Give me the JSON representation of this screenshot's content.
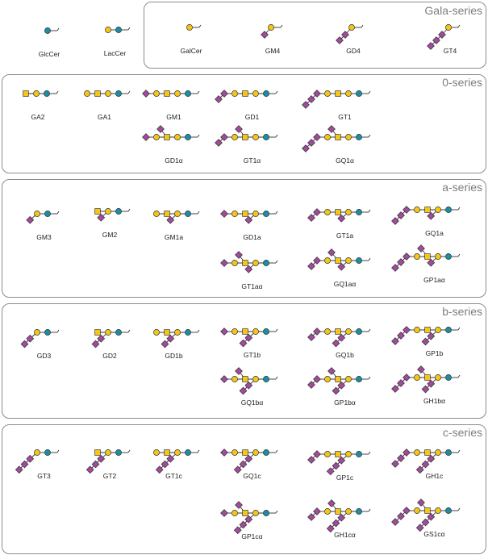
{
  "colors": {
    "glucose": "#1b8ea3",
    "galactose": "#f5c518",
    "galnac": "#f5c518",
    "sialic_acid": "#a24a9c",
    "frame": "#8c8c8c",
    "series_title": "#7d7d7d"
  },
  "legend_shapes": {
    "glucose": "blue-circle",
    "galactose": "yellow-circle",
    "galnac": "yellow-square",
    "sialic_acid": "purple-diamond"
  },
  "series": [
    {
      "id": "gala",
      "title": "Gala-series",
      "items": [
        {
          "name": "GalCer",
          "core": "C",
          "left": 0,
          "lower": []
        },
        {
          "name": "GM4",
          "core": "C",
          "left": 1,
          "lower": []
        },
        {
          "name": "GD4",
          "core": "C",
          "left": 2,
          "lower": []
        },
        {
          "name": "GT4",
          "core": "C",
          "left": 3,
          "lower": []
        }
      ]
    },
    {
      "id": "zero",
      "title": "0-series",
      "items": [
        {
          "name": "GA2",
          "core": "SCB",
          "left": 0,
          "lower": []
        },
        {
          "name": "GA1",
          "core": "CSCB",
          "left": 0,
          "lower": []
        },
        {
          "name": "GM1",
          "core": "CSCB",
          "left": 1,
          "lower": []
        },
        {
          "name": "GD1",
          "core": "CSCB",
          "left": 2,
          "lower": []
        },
        {
          "name": "GT1",
          "core": "CSCB",
          "left": 3,
          "lower": []
        },
        {
          "name": "GD1α",
          "core": "CSCB",
          "left": 1,
          "up": 1,
          "lower": []
        },
        {
          "name": "GT1α",
          "core": "CSCB",
          "left": 2,
          "up": 1,
          "lower": []
        },
        {
          "name": "GQ1α",
          "core": "CSCB",
          "left": 3,
          "up": 1,
          "lower": []
        }
      ]
    },
    {
      "id": "a",
      "title": "a-series",
      "items": [
        {
          "name": "GM3",
          "core": "CB",
          "left": 0,
          "lower": [
            1
          ]
        },
        {
          "name": "GM2",
          "core": "SCB",
          "left": 0,
          "lower": [
            1
          ]
        },
        {
          "name": "GM1a",
          "core": "CSCB",
          "left": 0,
          "lower": [
            1
          ]
        },
        {
          "name": "GD1a",
          "core": "CSCB",
          "left": 1,
          "lower": [
            1
          ]
        },
        {
          "name": "GT1a",
          "core": "CSCB",
          "left": 2,
          "lower": [
            1
          ]
        },
        {
          "name": "GQ1a",
          "core": "CSCB",
          "left": 3,
          "lower": [
            1
          ]
        },
        {
          "name": "GT1aα",
          "core": "CSCB",
          "left": 1,
          "up": 1,
          "lower": [
            1
          ]
        },
        {
          "name": "GQ1aα",
          "core": "CSCB",
          "left": 2,
          "up": 1,
          "lower": [
            1
          ]
        },
        {
          "name": "GP1aα",
          "core": "CSCB",
          "left": 3,
          "up": 1,
          "lower": [
            1
          ]
        }
      ]
    },
    {
      "id": "b",
      "title": "b-series",
      "items": [
        {
          "name": "GD3",
          "core": "CB",
          "left": 0,
          "lower": [
            2
          ]
        },
        {
          "name": "GD2",
          "core": "SCB",
          "left": 0,
          "lower": [
            2
          ]
        },
        {
          "name": "GD1b",
          "core": "CSCB",
          "left": 0,
          "lower": [
            2
          ]
        },
        {
          "name": "GT1b",
          "core": "CSCB",
          "left": 1,
          "lower": [
            2
          ]
        },
        {
          "name": "GQ1b",
          "core": "CSCB",
          "left": 2,
          "lower": [
            2
          ]
        },
        {
          "name": "GP1b",
          "core": "CSCB",
          "left": 3,
          "lower": [
            2
          ]
        },
        {
          "name": "GQ1bα",
          "core": "CSCB",
          "left": 1,
          "up": 1,
          "lower": [
            2
          ]
        },
        {
          "name": "GP1bα",
          "core": "CSCB",
          "left": 2,
          "up": 1,
          "lower": [
            2
          ]
        },
        {
          "name": "GH1bα",
          "core": "CSCB",
          "left": 3,
          "up": 1,
          "lower": [
            2
          ]
        }
      ]
    },
    {
      "id": "c",
      "title": "c-series",
      "items": [
        {
          "name": "GT3",
          "core": "CB",
          "left": 0,
          "lower": [
            3
          ]
        },
        {
          "name": "GT2",
          "core": "SCB",
          "left": 0,
          "lower": [
            3
          ]
        },
        {
          "name": "GT1c",
          "core": "CSCB",
          "left": 0,
          "lower": [
            3
          ]
        },
        {
          "name": "GQ1c",
          "core": "CSCB",
          "left": 1,
          "lower": [
            3
          ]
        },
        {
          "name": "GP1c",
          "core": "CSCB",
          "left": 2,
          "lower": [
            3
          ]
        },
        {
          "name": "GH1c",
          "core": "CSCB",
          "left": 3,
          "lower": [
            3
          ]
        },
        {
          "name": "GP1cα",
          "core": "CSCB",
          "left": 1,
          "up": 1,
          "lower": [
            3
          ]
        },
        {
          "name": "GH1cα",
          "core": "CSCB",
          "left": 2,
          "up": 1,
          "lower": [
            3
          ]
        },
        {
          "name": "GS1cα",
          "core": "CSCB",
          "left": 3,
          "up": 1,
          "lower": [
            3
          ]
        }
      ]
    }
  ],
  "outside": [
    {
      "name": "GlcCer",
      "core": "B",
      "left": 0,
      "lower": []
    },
    {
      "name": "LacCer",
      "core": "CB",
      "left": 0,
      "lower": []
    }
  ]
}
